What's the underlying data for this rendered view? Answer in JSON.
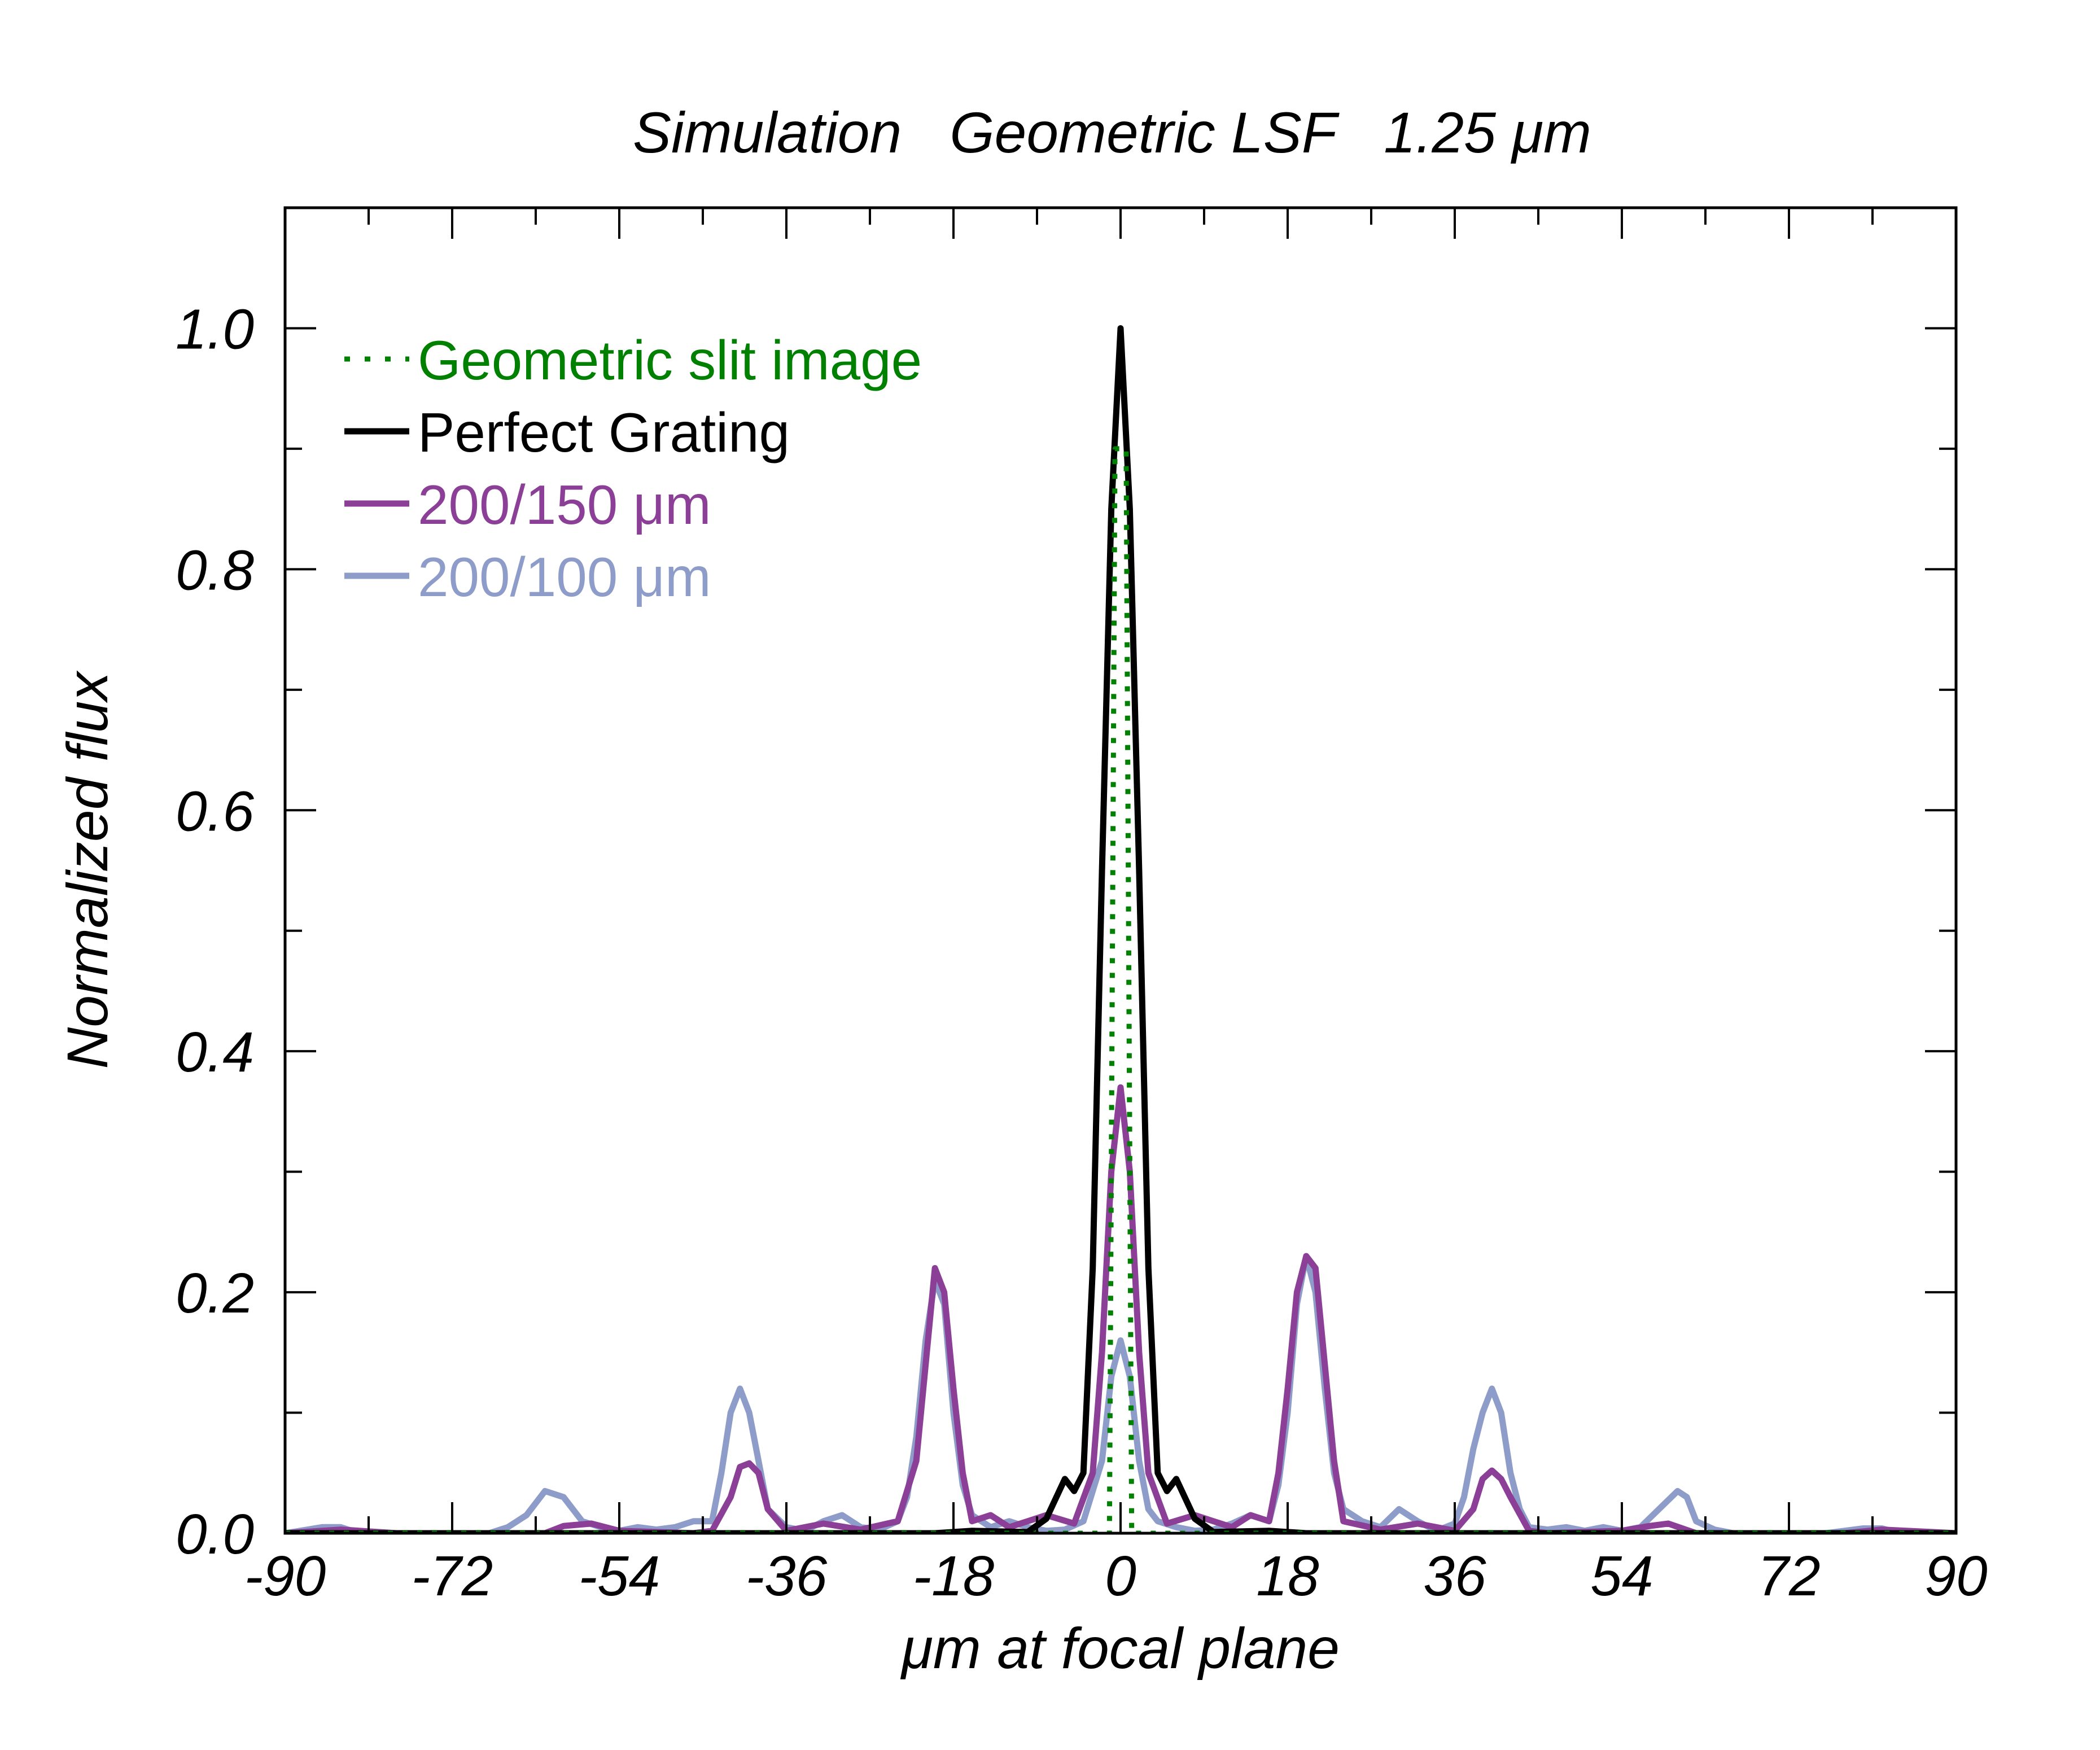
{
  "chart_data": {
    "type": "line",
    "title": "Simulation   Geometric LSF   1.25 μm",
    "xlabel": "μm at focal plane",
    "ylabel": "Normalized flux",
    "xlim": [
      -90,
      90
    ],
    "ylim": [
      0,
      1.1
    ],
    "xticks": [
      -90,
      -72,
      -54,
      -36,
      -18,
      0,
      18,
      36,
      54,
      72,
      90
    ],
    "xtick_labels": [
      "-90",
      "-72",
      "-54",
      "-36",
      "-18",
      "0",
      "18",
      "36",
      "54",
      "72",
      "90"
    ],
    "yticks": [
      0.0,
      0.2,
      0.4,
      0.6,
      0.8,
      1.0
    ],
    "ytick_labels": [
      "0.0",
      "0.2",
      "0.4",
      "0.6",
      "0.8",
      "1.0"
    ],
    "legend_position": "top-left",
    "series": [
      {
        "name": "Geometric slit image",
        "label": "Geometric slit image",
        "color": "#008000",
        "style": "dotted",
        "points": [
          [
            -90,
            0
          ],
          [
            -1.2,
            0
          ],
          [
            -0.6,
            0.9
          ],
          [
            0.6,
            0.9
          ],
          [
            1.2,
            0
          ],
          [
            90,
            0
          ]
        ]
      },
      {
        "name": "Perfect Grating",
        "label": "Perfect Grating",
        "color": "#000000",
        "style": "solid",
        "points": [
          [
            -90,
            0
          ],
          [
            -20,
            0
          ],
          [
            -16,
            0.002
          ],
          [
            -10,
            0.001
          ],
          [
            -8,
            0.012
          ],
          [
            -6,
            0.045
          ],
          [
            -5,
            0.035
          ],
          [
            -4,
            0.05
          ],
          [
            -3,
            0.22
          ],
          [
            -2,
            0.55
          ],
          [
            -1,
            0.85
          ],
          [
            0,
            1.0
          ],
          [
            1,
            0.85
          ],
          [
            2,
            0.55
          ],
          [
            3,
            0.22
          ],
          [
            4,
            0.05
          ],
          [
            5,
            0.035
          ],
          [
            6,
            0.045
          ],
          [
            8,
            0.012
          ],
          [
            10,
            0.001
          ],
          [
            16,
            0.002
          ],
          [
            20,
            0
          ],
          [
            90,
            0
          ]
        ]
      },
      {
        "name": "200/150 μm",
        "label": "200/150 μm",
        "color": "#8b3f96",
        "style": "solid",
        "points": [
          [
            -90,
            0
          ],
          [
            -84,
            0.003
          ],
          [
            -78,
            0
          ],
          [
            -62,
            0
          ],
          [
            -60,
            0.006
          ],
          [
            -57,
            0.008
          ],
          [
            -54,
            0.002
          ],
          [
            -46,
            0
          ],
          [
            -44,
            0.002
          ],
          [
            -42,
            0.03
          ],
          [
            -41,
            0.055
          ],
          [
            -40,
            0.058
          ],
          [
            -39,
            0.05
          ],
          [
            -38,
            0.02
          ],
          [
            -36,
            0.002
          ],
          [
            -32,
            0.008
          ],
          [
            -28,
            0.003
          ],
          [
            -24,
            0.01
          ],
          [
            -22,
            0.06
          ],
          [
            -21,
            0.14
          ],
          [
            -20,
            0.22
          ],
          [
            -19,
            0.2
          ],
          [
            -18,
            0.12
          ],
          [
            -17,
            0.05
          ],
          [
            -16,
            0.01
          ],
          [
            -14,
            0.015
          ],
          [
            -12,
            0.005
          ],
          [
            -10,
            0.01
          ],
          [
            -8,
            0.015
          ],
          [
            -5,
            0.008
          ],
          [
            -3,
            0.05
          ],
          [
            -2,
            0.15
          ],
          [
            -1,
            0.3
          ],
          [
            0,
            0.37
          ],
          [
            1,
            0.3
          ],
          [
            2,
            0.15
          ],
          [
            3,
            0.05
          ],
          [
            5,
            0.008
          ],
          [
            8,
            0.015
          ],
          [
            10,
            0.01
          ],
          [
            12,
            0.005
          ],
          [
            14,
            0.015
          ],
          [
            16,
            0.01
          ],
          [
            17,
            0.05
          ],
          [
            18,
            0.12
          ],
          [
            19,
            0.2
          ],
          [
            20,
            0.23
          ],
          [
            21,
            0.22
          ],
          [
            22,
            0.14
          ],
          [
            23,
            0.06
          ],
          [
            24,
            0.01
          ],
          [
            28,
            0.003
          ],
          [
            32,
            0.008
          ],
          [
            36,
            0.002
          ],
          [
            38,
            0.02
          ],
          [
            39,
            0.045
          ],
          [
            40,
            0.052
          ],
          [
            41,
            0.045
          ],
          [
            42,
            0.03
          ],
          [
            44,
            0.002
          ],
          [
            46,
            0
          ],
          [
            54,
            0.002
          ],
          [
            57,
            0.006
          ],
          [
            59,
            0.008
          ],
          [
            62,
            0
          ],
          [
            78,
            0
          ],
          [
            82,
            0.003
          ],
          [
            90,
            0
          ]
        ]
      },
      {
        "name": "200/100 μm",
        "label": "200/100 μm",
        "color": "#8e9cc9",
        "style": "solid",
        "points": [
          [
            -90,
            0
          ],
          [
            -86,
            0.005
          ],
          [
            -84,
            0.005
          ],
          [
            -82,
            0
          ],
          [
            -68,
            0
          ],
          [
            -66,
            0.005
          ],
          [
            -64,
            0.015
          ],
          [
            -62,
            0.035
          ],
          [
            -60,
            0.03
          ],
          [
            -58,
            0.01
          ],
          [
            -56,
            0.005
          ],
          [
            -54,
            0.002
          ],
          [
            -52,
            0.005
          ],
          [
            -50,
            0.003
          ],
          [
            -48,
            0.005
          ],
          [
            -46,
            0.01
          ],
          [
            -44,
            0.01
          ],
          [
            -43,
            0.05
          ],
          [
            -42,
            0.1
          ],
          [
            -41,
            0.12
          ],
          [
            -40,
            0.1
          ],
          [
            -39,
            0.06
          ],
          [
            -38,
            0.02
          ],
          [
            -36,
            0.005
          ],
          [
            -34,
            0.002
          ],
          [
            -32,
            0.01
          ],
          [
            -30,
            0.015
          ],
          [
            -28,
            0.005
          ],
          [
            -26,
            0.003
          ],
          [
            -24,
            0.01
          ],
          [
            -23,
            0.03
          ],
          [
            -22,
            0.08
          ],
          [
            -21,
            0.16
          ],
          [
            -20,
            0.21
          ],
          [
            -19,
            0.19
          ],
          [
            -18,
            0.1
          ],
          [
            -17,
            0.04
          ],
          [
            -16,
            0.015
          ],
          [
            -14,
            0.005
          ],
          [
            -12,
            0.01
          ],
          [
            -10,
            0.005
          ],
          [
            -8,
            0.002
          ],
          [
            -6,
            0.003
          ],
          [
            -4,
            0.01
          ],
          [
            -2,
            0.06
          ],
          [
            -1,
            0.13
          ],
          [
            0,
            0.16
          ],
          [
            1,
            0.13
          ],
          [
            2,
            0.06
          ],
          [
            3,
            0.02
          ],
          [
            4,
            0.01
          ],
          [
            6,
            0.005
          ],
          [
            8,
            0.002
          ],
          [
            10,
            0.003
          ],
          [
            12,
            0.008
          ],
          [
            14,
            0.015
          ],
          [
            16,
            0.01
          ],
          [
            17,
            0.04
          ],
          [
            18,
            0.1
          ],
          [
            19,
            0.19
          ],
          [
            20,
            0.23
          ],
          [
            21,
            0.2
          ],
          [
            22,
            0.12
          ],
          [
            23,
            0.05
          ],
          [
            24,
            0.02
          ],
          [
            26,
            0.01
          ],
          [
            28,
            0.005
          ],
          [
            30,
            0.02
          ],
          [
            32,
            0.01
          ],
          [
            34,
            0.002
          ],
          [
            36,
            0.008
          ],
          [
            37,
            0.03
          ],
          [
            38,
            0.07
          ],
          [
            39,
            0.1
          ],
          [
            40,
            0.12
          ],
          [
            41,
            0.1
          ],
          [
            42,
            0.05
          ],
          [
            43,
            0.02
          ],
          [
            44,
            0.005
          ],
          [
            46,
            0.003
          ],
          [
            48,
            0.005
          ],
          [
            50,
            0.002
          ],
          [
            52,
            0.005
          ],
          [
            54,
            0.002
          ],
          [
            56,
            0.005
          ],
          [
            58,
            0.02
          ],
          [
            60,
            0.035
          ],
          [
            61,
            0.03
          ],
          [
            62,
            0.01
          ],
          [
            64,
            0.003
          ],
          [
            66,
            0
          ],
          [
            76,
            0
          ],
          [
            80,
            0.004
          ],
          [
            82,
            0.004
          ],
          [
            84,
            0
          ],
          [
            90,
            0
          ]
        ]
      }
    ]
  }
}
